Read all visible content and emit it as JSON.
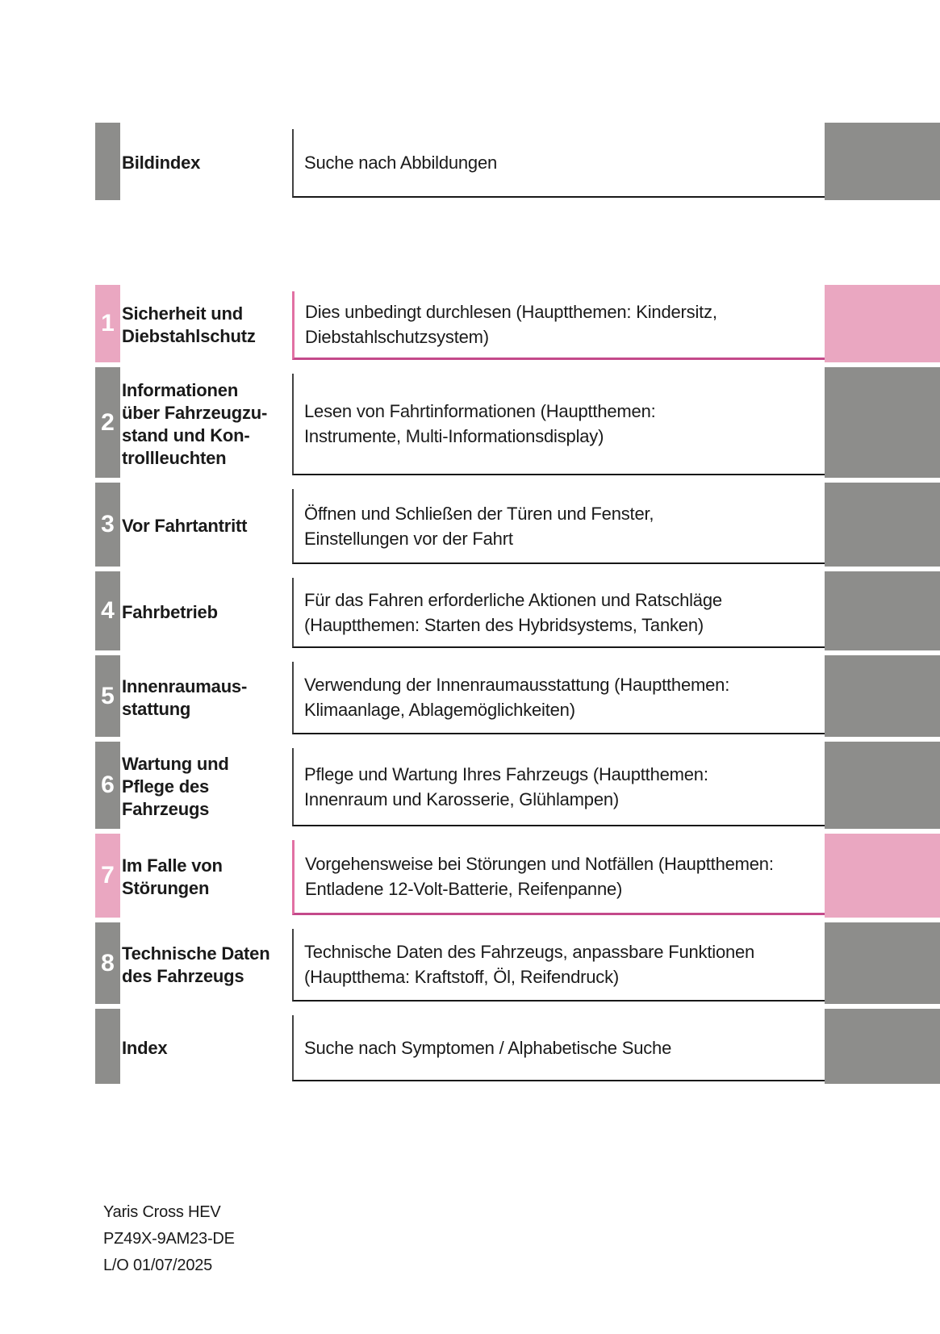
{
  "colors": {
    "tab_gray": "#8d8d8b",
    "tab_pink": "#eaa7c1",
    "pink_border_left": "#e171a3",
    "pink_border_bottom": "#c4498a",
    "gray_border_left": "#424242",
    "gray_border_bottom": "#181818",
    "text": "#1a1a1a",
    "number_text": "#ffffff"
  },
  "toc": {
    "rows": [
      {
        "id": "bildindex",
        "number": "",
        "accent": "gray",
        "title_lines": [
          "Bildindex"
        ],
        "desc_lines": [
          "Suche nach Abbildungen"
        ]
      },
      {
        "id": "kapitel-1",
        "number": "1",
        "accent": "pink",
        "title_lines": [
          "Sicherheit und",
          "Diebstahlschutz"
        ],
        "desc_lines": [
          "Dies unbedingt durchlesen (Hauptthemen: Kindersitz,",
          "Diebstahlschutzsystem)"
        ]
      },
      {
        "id": "kapitel-2",
        "number": "2",
        "accent": "gray",
        "title_lines": [
          "Informationen",
          "über Fahrzeugzu-",
          "stand und Kon-",
          "trollleuchten"
        ],
        "desc_lines": [
          "Lesen von Fahrtinformationen (Hauptthemen:",
          "Instrumente, Multi-Informationsdisplay)"
        ]
      },
      {
        "id": "kapitel-3",
        "number": "3",
        "accent": "gray",
        "title_lines": [
          "Vor Fahrtantritt"
        ],
        "desc_lines": [
          "Öffnen und Schließen der Türen und Fenster,",
          "Einstellungen vor der Fahrt"
        ]
      },
      {
        "id": "kapitel-4",
        "number": "4",
        "accent": "gray",
        "title_lines": [
          "Fahrbetrieb"
        ],
        "desc_lines": [
          "Für das Fahren erforderliche Aktionen und Ratschläge",
          "(Hauptthemen: Starten des Hybridsystems, Tanken)"
        ]
      },
      {
        "id": "kapitel-5",
        "number": "5",
        "accent": "gray",
        "title_lines": [
          "Innenraumaus-",
          "stattung"
        ],
        "desc_lines": [
          "Verwendung der Innenraumausstattung (Hauptthemen:",
          "Klimaanlage, Ablagemöglichkeiten)"
        ]
      },
      {
        "id": "kapitel-6",
        "number": "6",
        "accent": "gray",
        "title_lines": [
          "Wartung und",
          "Pflege des",
          "Fahrzeugs"
        ],
        "desc_lines": [
          "Pflege und Wartung Ihres Fahrzeugs (Hauptthemen:",
          "Innenraum und Karosserie, Glühlampen)"
        ]
      },
      {
        "id": "kapitel-7",
        "number": "7",
        "accent": "pink",
        "title_lines": [
          "Im Falle von",
          "Störungen"
        ],
        "desc_lines": [
          "Vorgehensweise bei Störungen und Notfällen (Hauptthemen:",
          "Entladene 12-Volt-Batterie, Reifenpanne)"
        ]
      },
      {
        "id": "kapitel-8",
        "number": "8",
        "accent": "gray",
        "title_lines": [
          "Technische Daten",
          "des Fahrzeugs"
        ],
        "desc_lines": [
          "Technische Daten des Fahrzeugs, anpassbare Funktionen",
          "(Hauptthema: Kraftstoff, Öl, Reifendruck)"
        ]
      },
      {
        "id": "index",
        "number": "",
        "accent": "gray",
        "title_lines": [
          "Index"
        ],
        "desc_lines": [
          "Suche nach Symptomen / Alphabetische Suche"
        ]
      }
    ]
  },
  "footer": {
    "model": "Yaris Cross HEV",
    "part_number": "PZ49X-9AM23-DE",
    "layout_code": "L/O 01/07/2025"
  }
}
